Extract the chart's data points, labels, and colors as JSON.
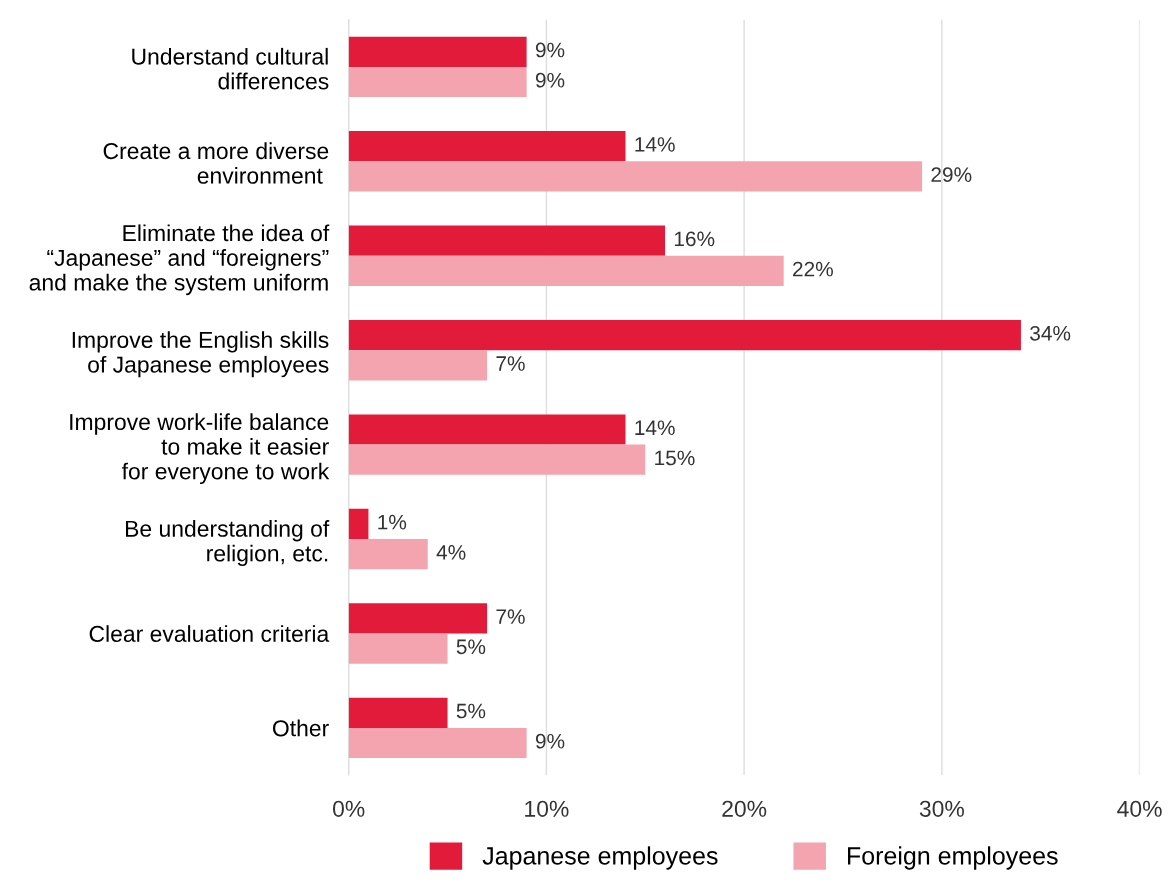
{
  "chart_data": {
    "type": "bar",
    "orientation": "horizontal",
    "categories": [
      "Understand cultural\ndifferences",
      "Create a more diverse\nenvironment ",
      "Eliminate the idea of\n“Japanese” and “foreigners”\nand make the system uniform",
      "Improve the English skills\nof Japanese employees",
      "Improve work-life balance\nto make it easier\nfor everyone to work",
      "Be understanding of\nreligion, etc.",
      "Clear evaluation criteria",
      "Other"
    ],
    "series": [
      {
        "name": "Japanese employees",
        "color": "#e31b3b",
        "values": [
          9,
          14,
          16,
          34,
          14,
          1,
          7,
          5
        ],
        "value_labels": [
          "9%",
          "14%",
          "16%",
          "34%",
          "14%",
          "1%",
          "7%",
          "5%"
        ]
      },
      {
        "name": "Foreign employees",
        "color": "#f4a4ae",
        "values": [
          9,
          29,
          22,
          7,
          15,
          4,
          5,
          9
        ],
        "value_labels": [
          "9%",
          "29%",
          "22%",
          "7%",
          "15%",
          "4%",
          "5%",
          "9%"
        ]
      }
    ],
    "xlim": [
      0,
      40
    ],
    "xticks": [
      {
        "value": 0,
        "label": "0%"
      },
      {
        "value": 10,
        "label": "10%"
      },
      {
        "value": 20,
        "label": "20%"
      },
      {
        "value": 30,
        "label": "30%"
      },
      {
        "value": 40,
        "label": "40%"
      }
    ],
    "grid": "x",
    "legend": "bottom"
  }
}
